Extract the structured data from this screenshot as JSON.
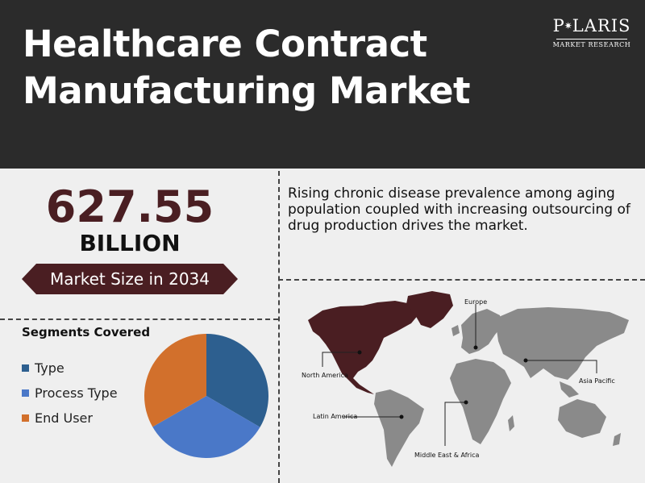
{
  "header": {
    "title_line1": "Healthcare Contract",
    "title_line2": "Manufacturing Market"
  },
  "logo": {
    "name_before_star": "P",
    "name_after_star": "LARIS",
    "subtitle": "MARKET RESEARCH",
    "star_icon": "compass-star-icon"
  },
  "market_size": {
    "value": "627.55",
    "unit": "BILLION",
    "ribbon_label": "Market Size in 2034"
  },
  "description": "Rising chronic disease prevalence among aging population coupled with increasing outsourcing of drug production drives the market.",
  "segments": {
    "title": "Segments Covered",
    "items": [
      {
        "label": "Type",
        "color": "#2d5f8f"
      },
      {
        "label": "Process Type",
        "color": "#4a78c8"
      },
      {
        "label": "End User",
        "color": "#d2702c"
      }
    ]
  },
  "pie": {
    "slices": [
      {
        "label": "Type",
        "value": 33.4,
        "color": "#2d5f8f"
      },
      {
        "label": "Process Type",
        "value": 33.3,
        "color": "#4a78c8"
      },
      {
        "label": "End User",
        "value": 33.3,
        "color": "#d2702c"
      }
    ]
  },
  "map": {
    "highlight_color": "#4a1e22",
    "land_color": "#8a8a8a",
    "regions": {
      "north_america": "North America",
      "europe": "Europe",
      "asia_pacific": "Asia Pacific",
      "latin_america": "Latin America",
      "middle_east_africa": "Middle East & Africa"
    }
  }
}
